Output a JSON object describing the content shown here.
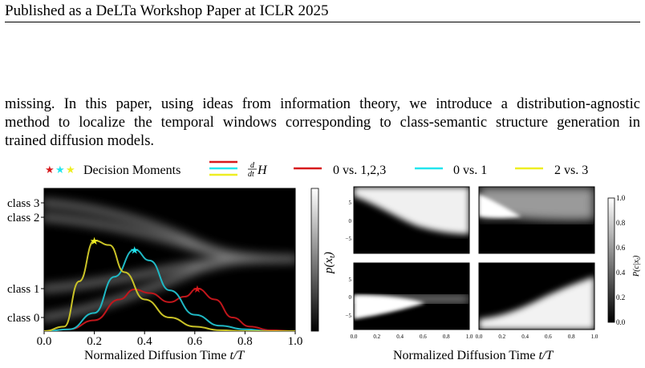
{
  "header": {
    "text": "Published as a DeLTa Workshop Paper at ICLR 2025"
  },
  "paragraph": {
    "lines": [
      "missing.  In this paper, using ideas from information theory, we introduce a distribution-agnostic",
      "method to localize the temporal windows corresponding to class-semantic structure generation in",
      "trained diffusion models."
    ]
  },
  "legend": {
    "decision_label": "Decision Moments",
    "entropy_label": "H",
    "entropy_prefix_num": "d",
    "entropy_prefix_den": "dt",
    "series": [
      {
        "name": "0 vs. 1,2,3",
        "color": "#d7191c"
      },
      {
        "name": "0 vs. 1",
        "color": "#22e5ee"
      },
      {
        "name": "2 vs. 3",
        "color": "#eeee22"
      }
    ]
  },
  "left_plot": {
    "class_labels": [
      "class 3",
      "class 2",
      "class 1",
      "class 0"
    ],
    "xlabel_prefix": "Normalized Diffusion Time ",
    "xlabel_math": "t/T",
    "colorbar_label": "p(x_t)",
    "xticks": [
      "0.0",
      "0.2",
      "0.4",
      "0.6",
      "0.8",
      "1.0"
    ]
  },
  "right_plot": {
    "xlabel_prefix": "Normalized Diffusion Time ",
    "xlabel_math": "t/T",
    "colorbar_label": "P(c|x_t)",
    "colorbar_ticks": [
      "1.0",
      "0.8",
      "0.6",
      "0.4",
      "0.2",
      "0.0"
    ],
    "yticks": [
      "5",
      "0",
      "−5"
    ],
    "xticks": [
      "0.0",
      "0.2",
      "0.4",
      "0.6",
      "0.8",
      "1.0"
    ]
  },
  "chart_data": {
    "type": "line",
    "xlabel": "Normalized Diffusion Time t/T",
    "xlim": [
      0.0,
      1.0
    ],
    "series": [
      {
        "name": "0 vs. 1,2,3",
        "color": "#d7191c",
        "x": [
          0.0,
          0.1,
          0.2,
          0.3,
          0.36,
          0.42,
          0.5,
          0.56,
          0.61,
          0.68,
          0.75,
          0.82,
          0.9,
          1.0
        ],
        "y": [
          0.0,
          0.02,
          0.12,
          0.35,
          0.46,
          0.42,
          0.32,
          0.38,
          0.47,
          0.35,
          0.15,
          0.05,
          0.01,
          0.0
        ],
        "peak": {
          "x": 0.61,
          "y": 0.47
        }
      },
      {
        "name": "0 vs. 1",
        "color": "#22e5ee",
        "x": [
          0.0,
          0.1,
          0.2,
          0.28,
          0.36,
          0.42,
          0.5,
          0.6,
          0.7,
          0.8,
          0.9,
          1.0
        ],
        "y": [
          0.0,
          0.02,
          0.2,
          0.6,
          0.9,
          0.78,
          0.45,
          0.18,
          0.06,
          0.02,
          0.0,
          0.0
        ],
        "peak": {
          "x": 0.36,
          "y": 0.9
        }
      },
      {
        "name": "2 vs. 3",
        "color": "#eeee22",
        "x": [
          0.0,
          0.08,
          0.14,
          0.2,
          0.26,
          0.32,
          0.4,
          0.5,
          0.6,
          0.7,
          0.8,
          1.0
        ],
        "y": [
          0.0,
          0.05,
          0.55,
          1.0,
          0.95,
          0.65,
          0.35,
          0.15,
          0.05,
          0.01,
          0.0,
          0.0
        ],
        "peak": {
          "x": 0.2,
          "y": 1.0
        }
      }
    ]
  }
}
